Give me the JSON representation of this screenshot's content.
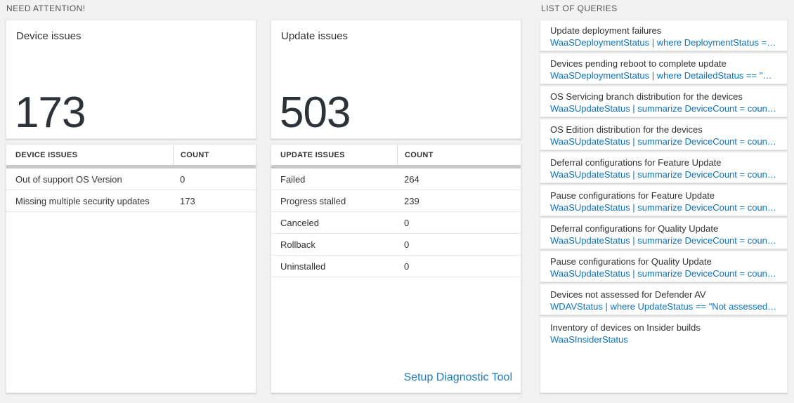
{
  "colors": {
    "accent_link_blue": "#0072c6",
    "page_background": "#f1f1f2",
    "big_number_text": "#2d3238"
  },
  "sections": {
    "need_attention": "NEED ATTENTION!",
    "list_of_queries": "LIST OF QUERIES"
  },
  "device_card": {
    "title": "Device issues",
    "big_number": "173",
    "table": {
      "headers": [
        "DEVICE ISSUES",
        "COUNT"
      ],
      "rows": [
        [
          "Out of support OS Version",
          "0"
        ],
        [
          "Missing multiple security updates",
          "173"
        ]
      ]
    }
  },
  "update_card": {
    "title": "Update issues",
    "big_number": "503",
    "table": {
      "headers": [
        "UPDATE ISSUES",
        "COUNT"
      ],
      "rows": [
        [
          "Failed",
          "264"
        ],
        [
          "Progress stalled",
          "239"
        ],
        [
          "Canceled",
          "0"
        ],
        [
          "Rollback",
          "0"
        ],
        [
          "Uninstalled",
          "0"
        ]
      ]
    },
    "link": "Setup Diagnostic Tool"
  },
  "queries": [
    {
      "title": "Update deployment failures",
      "query": "WaaSDeploymentStatus | where DeploymentStatus == \"Failed\" |..."
    },
    {
      "title": "Devices pending reboot to complete update",
      "query": "WaaSDeploymentStatus | where DetailedStatus == \"Reboot pend..."
    },
    {
      "title": "OS Servicing branch distribution for the devices",
      "query": "WaaSUpdateStatus | summarize DeviceCount = count() by OSSer..."
    },
    {
      "title": "OS Edition distribution for the devices",
      "query": "WaaSUpdateStatus | summarize DeviceCount = count() by OSEdit..."
    },
    {
      "title": "Deferral configurations for Feature Update",
      "query": "WaaSUpdateStatus | summarize DeviceCount = count() by Featur..."
    },
    {
      "title": "Pause configurations for Feature Update",
      "query": "WaaSUpdateStatus | summarize DeviceCount = count() by Featur..."
    },
    {
      "title": "Deferral configurations for Quality Update",
      "query": "WaaSUpdateStatus | summarize DeviceCount = count() by Qualit..."
    },
    {
      "title": "Pause configurations for Quality Update",
      "query": "WaaSUpdateStatus | summarize DeviceCount = count() by Qualit..."
    },
    {
      "title": "Devices not assessed for Defender AV",
      "query": "WDAVStatus | where UpdateStatus == \"Not assessed\" | render ta..."
    },
    {
      "title": "Inventory of devices on Insider builds",
      "query": "WaaSInsiderStatus"
    }
  ]
}
